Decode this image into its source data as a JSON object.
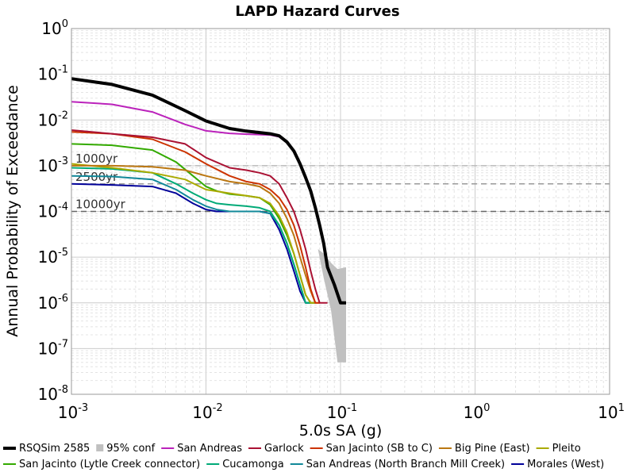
{
  "chart_data": {
    "type": "line",
    "title": "LAPD Hazard Curves",
    "xlabel": "5.0s SA (g)",
    "ylabel": "Annual Probability of Exceedance",
    "x_scale": "log",
    "y_scale": "log",
    "xlim": [
      0.001,
      10
    ],
    "ylim": [
      1e-08,
      1
    ],
    "grid": true,
    "legend_position": "bottom",
    "x_ticks": [
      {
        "base": "10",
        "exp": "-3",
        "value": 0.001
      },
      {
        "base": "10",
        "exp": "-2",
        "value": 0.01
      },
      {
        "base": "10",
        "exp": "-1",
        "value": 0.1
      },
      {
        "base": "10",
        "exp": "0",
        "value": 1
      },
      {
        "base": "10",
        "exp": "1",
        "value": 10
      }
    ],
    "y_ticks": [
      {
        "base": "10",
        "exp": "0",
        "value": 1
      },
      {
        "base": "10",
        "exp": "-1",
        "value": 0.1
      },
      {
        "base": "10",
        "exp": "-2",
        "value": 0.01
      },
      {
        "base": "10",
        "exp": "-3",
        "value": 0.001
      },
      {
        "base": "10",
        "exp": "-4",
        "value": 0.0001
      },
      {
        "base": "10",
        "exp": "-5",
        "value": 1e-05
      },
      {
        "base": "10",
        "exp": "-6",
        "value": 1e-06
      },
      {
        "base": "10",
        "exp": "-7",
        "value": 1e-07
      },
      {
        "base": "10",
        "exp": "-8",
        "value": 1e-08
      }
    ],
    "reference_lines": [
      {
        "label": "1000yr",
        "y": 0.001,
        "color": "#bbbbbb"
      },
      {
        "label": "2500yr",
        "y": 0.0004,
        "color": "#999999"
      },
      {
        "label": "10000yr",
        "y": 0.0001,
        "color": "#666666"
      }
    ],
    "confidence_band": {
      "name": "95% conf",
      "color": "#c0c0c0",
      "x": [
        0.068,
        0.075,
        0.085,
        0.095,
        0.11
      ],
      "lower": [
        1.5e-05,
        3.5e-06,
        7e-07,
        5e-08,
        5e-08
      ],
      "upper": [
        1.5e-05,
        1.2e-05,
        7.5e-06,
        5.5e-06,
        6e-06
      ]
    },
    "series": [
      {
        "name": "RSQSim 2585",
        "color": "#000000",
        "width": 4,
        "x": [
          0.001,
          0.002,
          0.004,
          0.007,
          0.01,
          0.015,
          0.02,
          0.03,
          0.035,
          0.04,
          0.045,
          0.05,
          0.055,
          0.06,
          0.065,
          0.07,
          0.075,
          0.08,
          0.09,
          0.1,
          0.11
        ],
        "y": [
          0.08,
          0.06,
          0.035,
          0.016,
          0.0095,
          0.0065,
          0.0057,
          0.005,
          0.0045,
          0.0033,
          0.0021,
          0.0011,
          0.00055,
          0.00028,
          0.00012,
          5e-05,
          2e-05,
          6e-06,
          2.5e-06,
          1e-06,
          1e-06
        ]
      },
      {
        "name": "95% conf",
        "color": "#c0c0c0",
        "x": [],
        "y": []
      },
      {
        "name": "San Andreas",
        "color": "#bb22bb",
        "width": 2,
        "x": [
          0.001,
          0.002,
          0.004,
          0.007,
          0.01,
          0.015,
          0.02,
          0.03,
          0.035,
          0.04,
          0.045,
          0.05,
          0.055,
          0.06,
          0.065,
          0.07,
          0.075,
          0.08,
          0.09,
          0.1,
          0.11
        ],
        "y": [
          0.025,
          0.022,
          0.015,
          0.008,
          0.0058,
          0.0051,
          0.0049,
          0.0047,
          0.0043,
          0.0032,
          0.002,
          0.0011,
          0.00055,
          0.00028,
          0.00012,
          5e-05,
          2e-05,
          6e-06,
          2.5e-06,
          1e-06,
          1e-06
        ]
      },
      {
        "name": "Garlock",
        "color": "#aa1133",
        "width": 2,
        "x": [
          0.001,
          0.002,
          0.004,
          0.007,
          0.01,
          0.015,
          0.02,
          0.025,
          0.03,
          0.035,
          0.04,
          0.045,
          0.05,
          0.055,
          0.06,
          0.065,
          0.07,
          0.075,
          0.08
        ],
        "y": [
          0.006,
          0.005,
          0.0042,
          0.003,
          0.0015,
          0.0009,
          0.0008,
          0.0007,
          0.0006,
          0.0004,
          0.0002,
          0.0001,
          4e-05,
          1.5e-05,
          5e-06,
          2e-06,
          1e-06,
          1e-06,
          1e-06
        ]
      },
      {
        "name": "San Jacinto (SB to C)",
        "color": "#cc3300",
        "width": 2,
        "x": [
          0.001,
          0.002,
          0.004,
          0.007,
          0.01,
          0.015,
          0.02,
          0.025,
          0.03,
          0.035,
          0.04,
          0.045,
          0.05,
          0.055,
          0.06,
          0.065,
          0.07
        ],
        "y": [
          0.0055,
          0.005,
          0.0038,
          0.002,
          0.0011,
          0.0006,
          0.00045,
          0.0004,
          0.0003,
          0.0002,
          0.00011,
          5e-05,
          1.8e-05,
          6e-06,
          2e-06,
          1e-06,
          1e-06
        ]
      },
      {
        "name": "Big Pine (East)",
        "color": "#bb7711",
        "width": 2,
        "x": [
          0.001,
          0.002,
          0.004,
          0.007,
          0.01,
          0.015,
          0.02,
          0.025,
          0.03,
          0.035,
          0.04,
          0.045,
          0.05,
          0.055,
          0.06,
          0.065,
          0.07
        ],
        "y": [
          0.001,
          0.001,
          0.00095,
          0.0008,
          0.0006,
          0.00045,
          0.0004,
          0.00035,
          0.00025,
          0.00015,
          7e-05,
          3e-05,
          1e-05,
          4e-06,
          1.8e-06,
          1e-06,
          1e-06
        ]
      },
      {
        "name": "Pleito",
        "color": "#aaaa00",
        "width": 2,
        "x": [
          0.001,
          0.002,
          0.004,
          0.007,
          0.01,
          0.015,
          0.02,
          0.025,
          0.03,
          0.035,
          0.04,
          0.045,
          0.05,
          0.055,
          0.06,
          0.065
        ],
        "y": [
          0.0011,
          0.0009,
          0.0007,
          0.0005,
          0.0003,
          0.00025,
          0.00022,
          0.0002,
          0.00015,
          8e-05,
          3.5e-05,
          1.2e-05,
          4e-06,
          1.5e-06,
          1e-06,
          1e-06
        ]
      },
      {
        "name": "San Jacinto (Lytle Creek connector)",
        "color": "#33aa00",
        "width": 2,
        "x": [
          0.001,
          0.002,
          0.004,
          0.006,
          0.008,
          0.01,
          0.012,
          0.015,
          0.02,
          0.025,
          0.03,
          0.035,
          0.04,
          0.045,
          0.05,
          0.055,
          0.06,
          0.065
        ],
        "y": [
          0.003,
          0.0028,
          0.0022,
          0.0012,
          0.0006,
          0.00035,
          0.00028,
          0.00024,
          0.00022,
          0.0002,
          0.00014,
          7e-05,
          3e-05,
          1.2e-05,
          4e-06,
          1.5e-06,
          1e-06,
          1e-06
        ]
      },
      {
        "name": "Cucamonga",
        "color": "#00aa77",
        "width": 2,
        "x": [
          0.001,
          0.002,
          0.004,
          0.006,
          0.008,
          0.01,
          0.012,
          0.015,
          0.02,
          0.025,
          0.03,
          0.035,
          0.04,
          0.045,
          0.05,
          0.055,
          0.06
        ],
        "y": [
          0.0009,
          0.00085,
          0.0007,
          0.0004,
          0.00025,
          0.00018,
          0.00015,
          0.00014,
          0.00013,
          0.00012,
          0.0001,
          5e-05,
          2e-05,
          7e-06,
          2.5e-06,
          1e-06,
          1e-06
        ]
      },
      {
        "name": "San Andreas (North Branch Mill Creek)",
        "color": "#118899",
        "width": 2,
        "x": [
          0.001,
          0.002,
          0.004,
          0.006,
          0.008,
          0.01,
          0.012,
          0.015,
          0.02,
          0.025,
          0.03,
          0.035,
          0.04,
          0.045,
          0.05,
          0.055,
          0.06,
          0.065
        ],
        "y": [
          0.0006,
          0.00058,
          0.0005,
          0.0003,
          0.00018,
          0.00013,
          0.00011,
          0.0001,
          0.0001,
          0.0001,
          9e-05,
          5e-05,
          2e-05,
          7e-06,
          2.5e-06,
          1e-06,
          1e-06,
          1e-06
        ]
      },
      {
        "name": "Morales (West)",
        "color": "#000099",
        "width": 2,
        "x": [
          0.001,
          0.002,
          0.004,
          0.006,
          0.008,
          0.01,
          0.012,
          0.015,
          0.02,
          0.025,
          0.03,
          0.035,
          0.04,
          0.045,
          0.05,
          0.055,
          0.06
        ],
        "y": [
          0.0004,
          0.00038,
          0.00035,
          0.00025,
          0.00015,
          0.00011,
          0.0001,
          0.0001,
          0.0001,
          0.0001,
          9e-05,
          4e-05,
          1.5e-05,
          5e-06,
          1.8e-06,
          1e-06,
          1e-06
        ]
      }
    ]
  }
}
